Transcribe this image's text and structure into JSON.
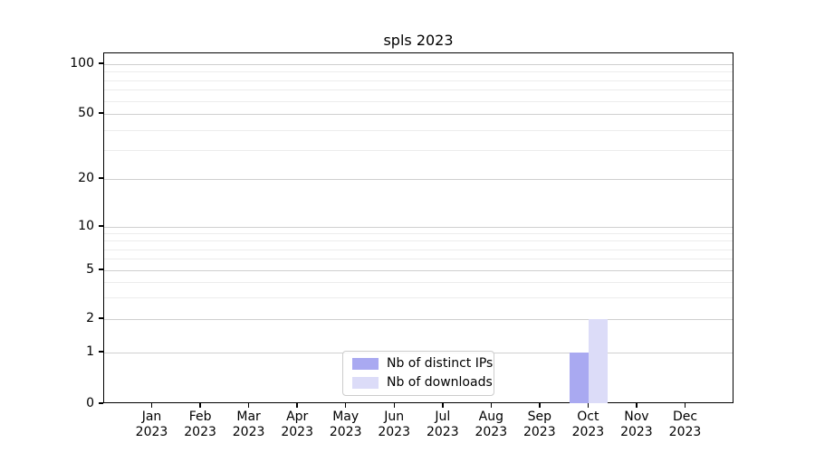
{
  "figure": {
    "background": "#ffffff",
    "text_color": "#000000",
    "axis_color": "#000000",
    "grid_major_color": "#cfcfcf",
    "grid_minor_color": "#ececec"
  },
  "chart_data": {
    "type": "bar",
    "title": "spls 2023",
    "xlabel": "",
    "ylabel": "",
    "yscale": "symlog",
    "ylim": [
      0,
      100
    ],
    "yticks": [
      0,
      1,
      2,
      5,
      10,
      20,
      50,
      100
    ],
    "grid": true,
    "legend_position": "lower center",
    "categories": [
      [
        "Jan",
        "2023"
      ],
      [
        "Feb",
        "2023"
      ],
      [
        "Mar",
        "2023"
      ],
      [
        "Apr",
        "2023"
      ],
      [
        "May",
        "2023"
      ],
      [
        "Jun",
        "2023"
      ],
      [
        "Jul",
        "2023"
      ],
      [
        "Aug",
        "2023"
      ],
      [
        "Sep",
        "2023"
      ],
      [
        "Oct",
        "2023"
      ],
      [
        "Nov",
        "2023"
      ],
      [
        "Dec",
        "2023"
      ]
    ],
    "series": [
      {
        "name": "Nb of distinct IPs",
        "color": "#a9a9f1",
        "values": [
          0,
          0,
          0,
          0,
          0,
          0,
          0,
          0,
          0,
          1,
          0,
          0
        ]
      },
      {
        "name": "Nb of downloads",
        "color": "#dcdcf8",
        "values": [
          0,
          0,
          0,
          0,
          0,
          0,
          0,
          0,
          0,
          2,
          0,
          0
        ]
      }
    ]
  }
}
